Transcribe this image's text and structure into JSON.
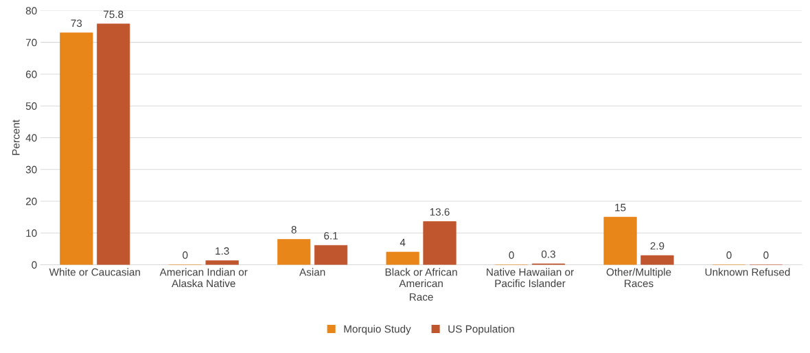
{
  "chart_data": {
    "type": "bar",
    "xlabel": "Race",
    "ylabel": "Percent",
    "categories": [
      "White or Caucasian",
      "American Indian or\nAlaska Native",
      "Asian",
      "Black or African\nAmerican",
      "Native Hawaiian or\nPacific Islander",
      "Other/Multiple\nRaces",
      "Unknown Refused"
    ],
    "series": [
      {
        "name": "Morquio Study",
        "color": "#e8861a",
        "values": [
          73,
          0,
          8,
          4,
          0,
          15,
          0
        ]
      },
      {
        "name": "US Population",
        "color": "#c0562e",
        "values": [
          75.8,
          1.3,
          6.1,
          13.6,
          0.3,
          2.9,
          0
        ]
      }
    ],
    "ylim": [
      0,
      80
    ],
    "yticks": [
      0,
      10,
      20,
      30,
      40,
      50,
      60,
      70,
      80
    ],
    "grid": "y",
    "legend": "bottom",
    "data_labels": true
  }
}
